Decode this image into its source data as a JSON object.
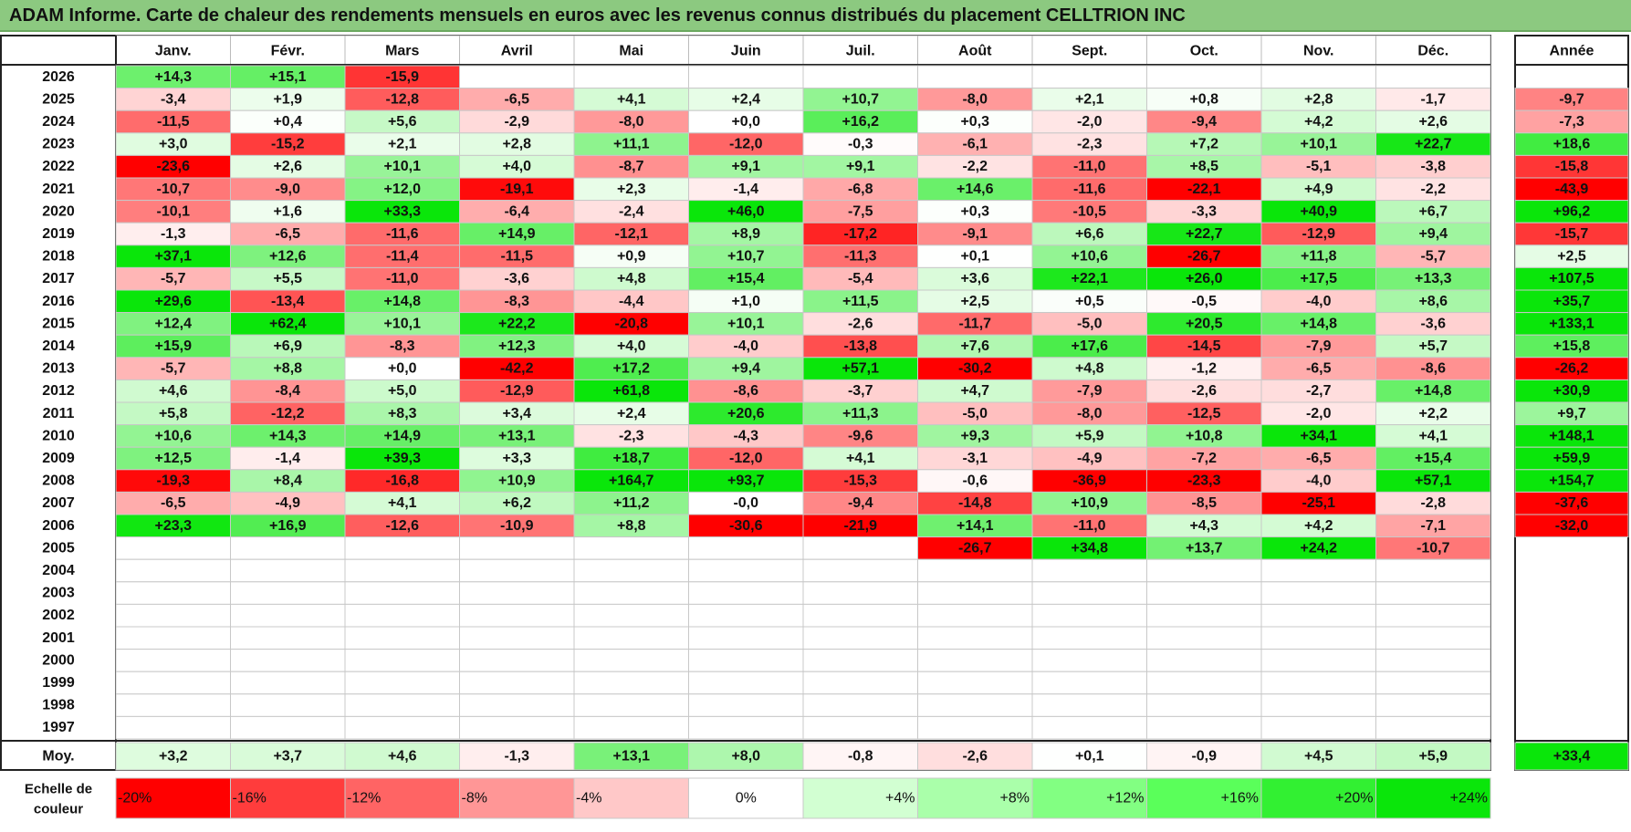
{
  "title": "ADAM Informe. Carte de chaleur des rendements mensuels en euros avec les revenus connus distribués du placement CELLTRION INC",
  "chart_data": {
    "type": "heatmap",
    "title": "ADAM Informe. Carte de chaleur des rendements mensuels en euros avec les revenus connus distribués du placement CELLTRION INC",
    "months": [
      "Janv.",
      "Févr.",
      "Mars",
      "Avril",
      "Mai",
      "Juin",
      "Juil.",
      "Août",
      "Sept.",
      "Oct.",
      "Nov.",
      "Déc."
    ],
    "year_header": "Année",
    "rows": [
      {
        "year": "2026",
        "values": [
          "+14,3",
          "+15,1",
          "-15,9",
          "",
          "",
          "",
          "",
          "",
          "",
          "",
          "",
          ""
        ],
        "annual": ""
      },
      {
        "year": "2025",
        "values": [
          "-3,4",
          "+1,9",
          "-12,8",
          "-6,5",
          "+4,1",
          "+2,4",
          "+10,7",
          "-8,0",
          "+2,1",
          "+0,8",
          "+2,8",
          "-1,7"
        ],
        "annual": "-9,7"
      },
      {
        "year": "2024",
        "values": [
          "-11,5",
          "+0,4",
          "+5,6",
          "-2,9",
          "-8,0",
          "+0,0",
          "+16,2",
          "+0,3",
          "-2,0",
          "-9,4",
          "+4,2",
          "+2,6"
        ],
        "annual": "-7,3"
      },
      {
        "year": "2023",
        "values": [
          "+3,0",
          "-15,2",
          "+2,1",
          "+2,8",
          "+11,1",
          "-12,0",
          "-0,3",
          "-6,1",
          "-2,3",
          "+7,2",
          "+10,1",
          "+22,7"
        ],
        "annual": "+18,6"
      },
      {
        "year": "2022",
        "values": [
          "-23,6",
          "+2,6",
          "+10,1",
          "+4,0",
          "-8,7",
          "+9,1",
          "+9,1",
          "-2,2",
          "-11,0",
          "+8,5",
          "-5,1",
          "-3,8"
        ],
        "annual": "-15,8"
      },
      {
        "year": "2021",
        "values": [
          "-10,7",
          "-9,0",
          "+12,0",
          "-19,1",
          "+2,3",
          "-1,4",
          "-6,8",
          "+14,6",
          "-11,6",
          "-22,1",
          "+4,9",
          "-2,2"
        ],
        "annual": "-43,9"
      },
      {
        "year": "2020",
        "values": [
          "-10,1",
          "+1,6",
          "+33,3",
          "-6,4",
          "-2,4",
          "+46,0",
          "-7,5",
          "+0,3",
          "-10,5",
          "-3,3",
          "+40,9",
          "+6,7"
        ],
        "annual": "+96,2"
      },
      {
        "year": "2019",
        "values": [
          "-1,3",
          "-6,5",
          "-11,6",
          "+14,9",
          "-12,1",
          "+8,9",
          "-17,2",
          "-9,1",
          "+6,6",
          "+22,7",
          "-12,9",
          "+9,4"
        ],
        "annual": "-15,7"
      },
      {
        "year": "2018",
        "values": [
          "+37,1",
          "+12,6",
          "-11,4",
          "-11,5",
          "+0,9",
          "+10,7",
          "-11,3",
          "+0,1",
          "+10,6",
          "-26,7",
          "+11,8",
          "-5,7"
        ],
        "annual": "+2,5"
      },
      {
        "year": "2017",
        "values": [
          "-5,7",
          "+5,5",
          "-11,0",
          "-3,6",
          "+4,8",
          "+15,4",
          "-5,4",
          "+3,6",
          "+22,1",
          "+26,0",
          "+17,5",
          "+13,3"
        ],
        "annual": "+107,5"
      },
      {
        "year": "2016",
        "values": [
          "+29,6",
          "-13,4",
          "+14,8",
          "-8,3",
          "-4,4",
          "+1,0",
          "+11,5",
          "+2,5",
          "+0,5",
          "-0,5",
          "-4,0",
          "+8,6"
        ],
        "annual": "+35,7"
      },
      {
        "year": "2015",
        "values": [
          "+12,4",
          "+62,4",
          "+10,1",
          "+22,2",
          "-20,8",
          "+10,1",
          "-2,6",
          "-11,7",
          "-5,0",
          "+20,5",
          "+14,8",
          "-3,6"
        ],
        "annual": "+133,1"
      },
      {
        "year": "2014",
        "values": [
          "+15,9",
          "+6,9",
          "-8,3",
          "+12,3",
          "+4,0",
          "-4,0",
          "-13,8",
          "+7,6",
          "+17,6",
          "-14,5",
          "-7,9",
          "+5,7"
        ],
        "annual": "+15,8"
      },
      {
        "year": "2013",
        "values": [
          "-5,7",
          "+8,8",
          "+0,0",
          "-42,2",
          "+17,2",
          "+9,4",
          "+57,1",
          "-30,2",
          "+4,8",
          "-1,2",
          "-6,5",
          "-8,6"
        ],
        "annual": "-26,2"
      },
      {
        "year": "2012",
        "values": [
          "+4,6",
          "-8,4",
          "+5,0",
          "-12,9",
          "+61,8",
          "-8,6",
          "-3,7",
          "+4,7",
          "-7,9",
          "-2,6",
          "-2,7",
          "+14,8"
        ],
        "annual": "+30,9"
      },
      {
        "year": "2011",
        "values": [
          "+5,8",
          "-12,2",
          "+8,3",
          "+3,4",
          "+2,4",
          "+20,6",
          "+11,3",
          "-5,0",
          "-8,0",
          "-12,5",
          "-2,0",
          "+2,2"
        ],
        "annual": "+9,7"
      },
      {
        "year": "2010",
        "values": [
          "+10,6",
          "+14,3",
          "+14,9",
          "+13,1",
          "-2,3",
          "-4,3",
          "-9,6",
          "+9,3",
          "+5,9",
          "+10,8",
          "+34,1",
          "+4,1"
        ],
        "annual": "+148,1"
      },
      {
        "year": "2009",
        "values": [
          "+12,5",
          "-1,4",
          "+39,3",
          "+3,3",
          "+18,7",
          "-12,0",
          "+4,1",
          "-3,1",
          "-4,9",
          "-7,2",
          "-6,5",
          "+15,4"
        ],
        "annual": "+59,9"
      },
      {
        "year": "2008",
        "values": [
          "-19,3",
          "+8,4",
          "-16,8",
          "+10,9",
          "+164,7",
          "+93,7",
          "-15,3",
          "-0,6",
          "-36,9",
          "-23,3",
          "-4,0",
          "+57,1"
        ],
        "annual": "+154,7"
      },
      {
        "year": "2007",
        "values": [
          "-6,5",
          "-4,9",
          "+4,1",
          "+6,2",
          "+11,2",
          "-0,0",
          "-9,4",
          "-14,8",
          "+10,9",
          "-8,5",
          "-25,1",
          "-2,8"
        ],
        "annual": "-37,6"
      },
      {
        "year": "2006",
        "values": [
          "+23,3",
          "+16,9",
          "-12,6",
          "-10,9",
          "+8,8",
          "-30,6",
          "-21,9",
          "+14,1",
          "-11,0",
          "+4,3",
          "+4,2",
          "-7,1"
        ],
        "annual": "-32,0"
      },
      {
        "year": "2005",
        "values": [
          "",
          "",
          "",
          "",
          "",
          "",
          "",
          "-26,7",
          "+34,8",
          "+13,7",
          "+24,2",
          "-10,7"
        ],
        "annual": ""
      },
      {
        "year": "2004",
        "values": [
          "",
          "",
          "",
          "",
          "",
          "",
          "",
          "",
          "",
          "",
          "",
          ""
        ],
        "annual": ""
      },
      {
        "year": "2003",
        "values": [
          "",
          "",
          "",
          "",
          "",
          "",
          "",
          "",
          "",
          "",
          "",
          ""
        ],
        "annual": ""
      },
      {
        "year": "2002",
        "values": [
          "",
          "",
          "",
          "",
          "",
          "",
          "",
          "",
          "",
          "",
          "",
          ""
        ],
        "annual": ""
      },
      {
        "year": "2001",
        "values": [
          "",
          "",
          "",
          "",
          "",
          "",
          "",
          "",
          "",
          "",
          "",
          ""
        ],
        "annual": ""
      },
      {
        "year": "2000",
        "values": [
          "",
          "",
          "",
          "",
          "",
          "",
          "",
          "",
          "",
          "",
          "",
          ""
        ],
        "annual": ""
      },
      {
        "year": "1999",
        "values": [
          "",
          "",
          "",
          "",
          "",
          "",
          "",
          "",
          "",
          "",
          "",
          ""
        ],
        "annual": ""
      },
      {
        "year": "1998",
        "values": [
          "",
          "",
          "",
          "",
          "",
          "",
          "",
          "",
          "",
          "",
          "",
          ""
        ],
        "annual": ""
      },
      {
        "year": "1997",
        "values": [
          "",
          "",
          "",
          "",
          "",
          "",
          "",
          "",
          "",
          "",
          "",
          ""
        ],
        "annual": ""
      }
    ],
    "average": {
      "label": "Moy.",
      "values": [
        "+3,2",
        "+3,7",
        "+4,6",
        "-1,3",
        "+13,1",
        "+8,0",
        "-0,8",
        "-2,6",
        "+0,1",
        "-0,9",
        "+4,5",
        "+5,9"
      ],
      "annual": "+33,4"
    },
    "scale": {
      "label_line1": "Echelle de",
      "label_line2": "couleur",
      "steps": [
        {
          "label": "-20%",
          "color": "#ff0000"
        },
        {
          "label": "-16%",
          "color": "#ff3c3c"
        },
        {
          "label": "-12%",
          "color": "#ff6464"
        },
        {
          "label": "-8%",
          "color": "#ff9696"
        },
        {
          "label": "-4%",
          "color": "#ffc8c8"
        },
        {
          "label": "0%",
          "color": "#ffffff"
        },
        {
          "label": "+4%",
          "color": "#d2ffd2"
        },
        {
          "label": "+8%",
          "color": "#aaffaa"
        },
        {
          "label": "+12%",
          "color": "#82ff82"
        },
        {
          "label": "+16%",
          "color": "#5aff5a"
        },
        {
          "label": "+20%",
          "color": "#32f032"
        },
        {
          "label": "+24%",
          "color": "#0ae60a"
        }
      ]
    }
  }
}
